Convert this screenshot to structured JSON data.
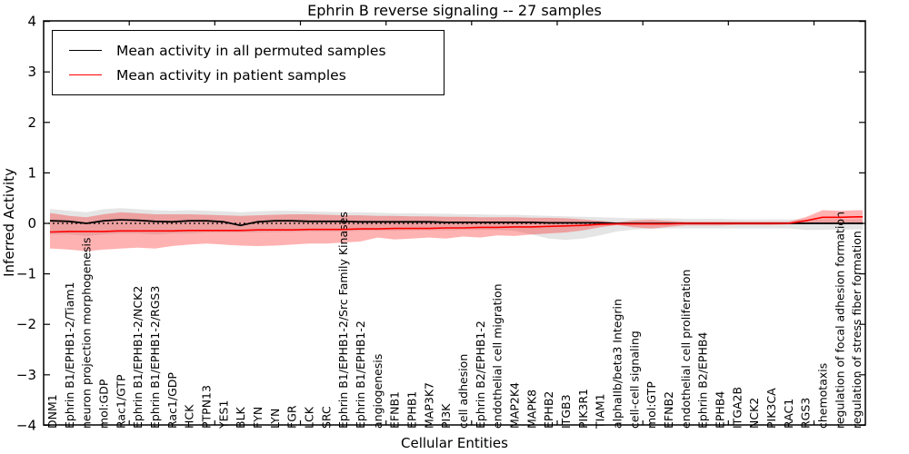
{
  "figure": {
    "title": "Ephrin B reverse signaling -- 27 samples",
    "xlabel": "Cellular Entities",
    "ylabel": "Inferred Activity"
  },
  "legend": {
    "items": [
      {
        "label": "Mean activity in all permuted samples",
        "color": "#000000"
      },
      {
        "label": "Mean activity in patient samples",
        "color": "#ff0000"
      }
    ]
  },
  "chart_data": {
    "type": "line",
    "title": "Ephrin B reverse signaling -- 27 samples",
    "xlabel": "Cellular Entities",
    "ylabel": "Inferred Activity",
    "ylim": [
      -4,
      4
    ],
    "yticks": [
      -4,
      -3,
      -2,
      -1,
      0,
      1,
      2,
      3,
      4
    ],
    "x_major_tick_every": 5,
    "grid": false,
    "legend_position": "upper left",
    "zero_line": {
      "value": 0,
      "style": "dashed",
      "color": "#000000"
    },
    "categories": [
      "DNM1",
      "Ephrin B1/EPHB1-2/Tiam1",
      "neuron projection morphogenesis",
      "mol:GDP",
      "Rac1/GTP",
      "Ephrin B1/EPHB1-2/NCK2",
      "Ephrin B1/EPHB1-2/RGS3",
      "Rac1/GDP",
      "HCK",
      "PTPN13",
      "YES1",
      "BLK",
      "FYN",
      "LYN",
      "FGR",
      "LCK",
      "SRC",
      "Ephrin B1/EPHB1-2/Src Family Kinases",
      "Ephrin B1/EPHB1-2",
      "angiogenesis",
      "EFNB1",
      "EPHB1",
      "MAP3K7",
      "PI3K",
      "cell adhesion",
      "Ephrin B2/EPHB1-2",
      "endothelial cell migration",
      "MAP2K4",
      "MAPK8",
      "EPHB2",
      "ITGB3",
      "PIK3R1",
      "TIAM1",
      "alphaIIb/beta3 Integrin",
      "cell-cell signaling",
      "mol:GTP",
      "EFNB2",
      "endothelial cell proliferation",
      "Ephrin B2/EPHB4",
      "EPHB4",
      "ITGA2B",
      "NCK2",
      "PIK3CA",
      "RAC1",
      "RGS3",
      "chemotaxis",
      "regulation of focal adhesion formation",
      "regulation of stress fiber formation"
    ],
    "series": [
      {
        "name": "Mean activity in all permuted samples",
        "color": "#000000",
        "values": [
          0.05,
          0.04,
          0.0,
          0.05,
          0.07,
          0.06,
          0.04,
          0.03,
          0.05,
          0.05,
          0.03,
          -0.04,
          0.03,
          0.05,
          0.05,
          0.04,
          0.04,
          0.04,
          0.03,
          0.03,
          0.03,
          0.03,
          0.03,
          0.02,
          0.02,
          0.02,
          0.02,
          0.02,
          0.02,
          0.01,
          0.01,
          0.01,
          0.01,
          0.0,
          0.0,
          0.0,
          0.0,
          0.0,
          0.0,
          0.0,
          0.0,
          0.0,
          0.0,
          0.0,
          0.0,
          0.0,
          0.0,
          0.0
        ]
      },
      {
        "name": "Mean activity in patient samples",
        "color": "#ff0000",
        "values": [
          -0.17,
          -0.16,
          -0.16,
          -0.16,
          -0.15,
          -0.15,
          -0.15,
          -0.15,
          -0.14,
          -0.14,
          -0.14,
          -0.14,
          -0.13,
          -0.13,
          -0.13,
          -0.12,
          -0.12,
          -0.12,
          -0.11,
          -0.11,
          -0.1,
          -0.1,
          -0.1,
          -0.09,
          -0.09,
          -0.08,
          -0.08,
          -0.07,
          -0.07,
          -0.06,
          -0.05,
          -0.04,
          -0.02,
          -0.01,
          -0.01,
          -0.01,
          -0.01,
          0.0,
          0.0,
          0.0,
          0.0,
          0.0,
          0.0,
          0.0,
          0.05,
          0.12,
          0.12,
          0.13
        ]
      }
    ],
    "bands": [
      {
        "name": "permuted samples activity range",
        "color": "#000000",
        "opacity": 0.1,
        "upper": [
          0.28,
          0.25,
          0.22,
          0.28,
          0.3,
          0.28,
          0.26,
          0.25,
          0.26,
          0.25,
          0.24,
          0.22,
          0.24,
          0.25,
          0.25,
          0.24,
          0.23,
          0.22,
          0.22,
          0.21,
          0.2,
          0.2,
          0.19,
          0.19,
          0.18,
          0.18,
          0.17,
          0.17,
          0.16,
          0.15,
          0.14,
          0.13,
          0.12,
          0.11,
          0.1,
          0.1,
          0.1,
          0.09,
          0.09,
          0.09,
          0.08,
          0.08,
          0.08,
          0.08,
          0.08,
          0.08,
          0.08,
          0.08
        ],
        "lower": [
          -0.22,
          -0.22,
          -0.25,
          -0.22,
          -0.2,
          -0.2,
          -0.22,
          -0.2,
          -0.2,
          -0.18,
          -0.18,
          -0.18,
          -0.18,
          -0.17,
          -0.17,
          -0.16,
          -0.16,
          -0.16,
          -0.15,
          -0.15,
          -0.15,
          -0.14,
          -0.14,
          -0.14,
          -0.13,
          -0.13,
          -0.13,
          -0.15,
          -0.22,
          -0.3,
          -0.33,
          -0.3,
          -0.24,
          -0.16,
          -0.12,
          -0.11,
          -0.1,
          -0.1,
          -0.1,
          -0.1,
          -0.1,
          -0.1,
          -0.1,
          -0.1,
          -0.13,
          -0.13,
          -0.12,
          -0.12
        ]
      },
      {
        "name": "patient samples activity range",
        "color": "#ff0000",
        "opacity": 0.3,
        "upper": [
          0.2,
          0.15,
          0.12,
          0.18,
          0.22,
          0.2,
          0.18,
          0.18,
          0.18,
          0.17,
          0.16,
          0.15,
          0.16,
          0.17,
          0.18,
          0.18,
          0.17,
          0.16,
          0.16,
          0.15,
          0.15,
          0.14,
          0.14,
          0.13,
          0.13,
          0.12,
          0.12,
          0.12,
          0.11,
          0.11,
          0.1,
          0.08,
          0.05,
          0.02,
          0.06,
          0.07,
          0.05,
          0.03,
          0.03,
          0.03,
          0.03,
          0.03,
          0.03,
          0.03,
          0.12,
          0.26,
          0.25,
          0.26
        ],
        "lower": [
          -0.5,
          -0.52,
          -0.55,
          -0.52,
          -0.5,
          -0.48,
          -0.5,
          -0.45,
          -0.42,
          -0.4,
          -0.42,
          -0.44,
          -0.45,
          -0.44,
          -0.42,
          -0.4,
          -0.4,
          -0.38,
          -0.36,
          -0.28,
          -0.32,
          -0.3,
          -0.28,
          -0.3,
          -0.26,
          -0.28,
          -0.24,
          -0.25,
          -0.22,
          -0.2,
          -0.18,
          -0.14,
          -0.08,
          -0.03,
          -0.08,
          -0.1,
          -0.07,
          -0.04,
          -0.04,
          -0.04,
          -0.03,
          -0.03,
          -0.03,
          -0.02,
          -0.01,
          0.0,
          0.0,
          0.0
        ]
      }
    ]
  }
}
